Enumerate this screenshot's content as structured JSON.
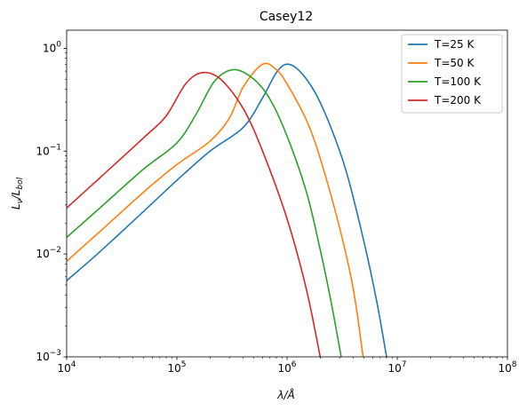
{
  "chart_data": {
    "type": "line",
    "title": "Casey12",
    "xlabel": "λ/Å",
    "ylabel_main": "L",
    "ylabel_main_sub": "ν",
    "ylabel_div": "/L",
    "ylabel_div_sub": "bol",
    "xscale": "log",
    "yscale": "log",
    "xlim": [
      10000,
      100000000
    ],
    "ylim": [
      0.001,
      1.5
    ],
    "x_ticks": [
      {
        "value": 10000,
        "base": "10",
        "exp": "4"
      },
      {
        "value": 100000,
        "base": "10",
        "exp": "5"
      },
      {
        "value": 1000000,
        "base": "10",
        "exp": "6"
      },
      {
        "value": 10000000,
        "base": "10",
        "exp": "7"
      },
      {
        "value": 100000000,
        "base": "10",
        "exp": "8"
      }
    ],
    "y_ticks": [
      {
        "value": 0.001,
        "base": "10",
        "exp": "−3"
      },
      {
        "value": 0.01,
        "base": "10",
        "exp": "−2"
      },
      {
        "value": 0.1,
        "base": "10",
        "exp": "−1"
      },
      {
        "value": 1,
        "base": "10",
        "exp": "0"
      }
    ],
    "grid": false,
    "legend_position": "top-right",
    "series": [
      {
        "name": "T=25 K",
        "color": "#1f77b4",
        "points": [
          [
            10000,
            0.0055
          ],
          [
            20000,
            0.0105
          ],
          [
            50000,
            0.026
          ],
          [
            100000,
            0.052
          ],
          [
            200000,
            0.1
          ],
          [
            400000,
            0.17
          ],
          [
            600000,
            0.33
          ],
          [
            800000,
            0.58
          ],
          [
            1000000,
            0.7
          ],
          [
            1300000,
            0.6
          ],
          [
            1800000,
            0.37
          ],
          [
            2500000,
            0.17
          ],
          [
            3500000,
            0.06
          ],
          [
            5000000,
            0.013
          ],
          [
            6500000,
            0.0035
          ],
          [
            8000000,
            0.001
          ]
        ]
      },
      {
        "name": "T=50 K",
        "color": "#ff7f0e",
        "points": [
          [
            10000,
            0.0085
          ],
          [
            20000,
            0.0165
          ],
          [
            50000,
            0.04
          ],
          [
            100000,
            0.074
          ],
          [
            200000,
            0.125
          ],
          [
            300000,
            0.21
          ],
          [
            400000,
            0.42
          ],
          [
            600000,
            0.7
          ],
          [
            800000,
            0.62
          ],
          [
            1000000,
            0.45
          ],
          [
            1500000,
            0.2
          ],
          [
            2000000,
            0.085
          ],
          [
            3000000,
            0.018
          ],
          [
            4000000,
            0.0045
          ],
          [
            4900000,
            0.001
          ]
        ]
      },
      {
        "name": "T=100 K",
        "color": "#2ca02c",
        "points": [
          [
            10000,
            0.0145
          ],
          [
            20000,
            0.028
          ],
          [
            50000,
            0.067
          ],
          [
            100000,
            0.12
          ],
          [
            150000,
            0.23
          ],
          [
            220000,
            0.48
          ],
          [
            330000,
            0.62
          ],
          [
            500000,
            0.5
          ],
          [
            700000,
            0.32
          ],
          [
            1000000,
            0.14
          ],
          [
            1500000,
            0.04
          ],
          [
            2000000,
            0.011
          ],
          [
            2500000,
            0.0035
          ],
          [
            3100000,
            0.001
          ]
        ]
      },
      {
        "name": "T=200 K",
        "color": "#d62728",
        "points": [
          [
            10000,
            0.028
          ],
          [
            20000,
            0.055
          ],
          [
            50000,
            0.135
          ],
          [
            80000,
            0.22
          ],
          [
            120000,
            0.45
          ],
          [
            170000,
            0.58
          ],
          [
            250000,
            0.5
          ],
          [
            400000,
            0.26
          ],
          [
            600000,
            0.1
          ],
          [
            1000000,
            0.022
          ],
          [
            1500000,
            0.0045
          ],
          [
            2000000,
            0.001
          ]
        ]
      }
    ]
  }
}
